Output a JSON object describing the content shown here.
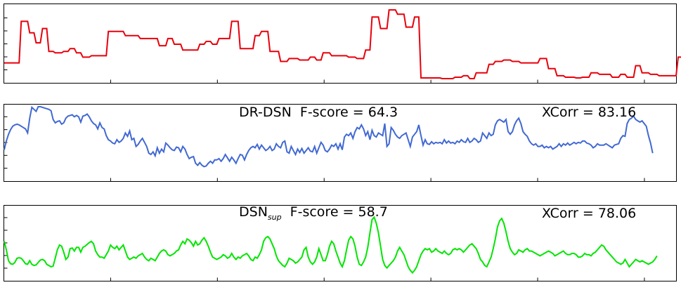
{
  "chart_data": [
    {
      "type": "line",
      "color": "#e8000b",
      "xlim": [
        0,
        316
      ],
      "ylim": [
        0,
        1
      ],
      "grid": false,
      "x_step": 1,
      "values": [
        0.22,
        0.22,
        0.22,
        0.22,
        0.22,
        0.22,
        0.22,
        0.22,
        0.8,
        0.8,
        0.8,
        0.8,
        0.64,
        0.64,
        0.64,
        0.5,
        0.5,
        0.5,
        0.7,
        0.7,
        0.7,
        0.38,
        0.38,
        0.38,
        0.36,
        0.36,
        0.36,
        0.36,
        0.38,
        0.38,
        0.38,
        0.42,
        0.42,
        0.42,
        0.36,
        0.36,
        0.36,
        0.3,
        0.3,
        0.3,
        0.3,
        0.32,
        0.32,
        0.32,
        0.32,
        0.32,
        0.32,
        0.32,
        0.32,
        0.66,
        0.66,
        0.66,
        0.66,
        0.66,
        0.66,
        0.66,
        0.66,
        0.6,
        0.6,
        0.6,
        0.6,
        0.6,
        0.6,
        0.6,
        0.56,
        0.56,
        0.56,
        0.56,
        0.56,
        0.56,
        0.56,
        0.56,
        0.56,
        0.46,
        0.46,
        0.46,
        0.46,
        0.56,
        0.56,
        0.56,
        0.48,
        0.48,
        0.48,
        0.48,
        0.4,
        0.4,
        0.4,
        0.4,
        0.4,
        0.4,
        0.4,
        0.4,
        0.48,
        0.48,
        0.48,
        0.52,
        0.52,
        0.52,
        0.48,
        0.48,
        0.48,
        0.56,
        0.56,
        0.56,
        0.56,
        0.56,
        0.56,
        0.8,
        0.8,
        0.8,
        0.8,
        0.42,
        0.42,
        0.42,
        0.42,
        0.42,
        0.42,
        0.42,
        0.6,
        0.6,
        0.6,
        0.66,
        0.66,
        0.66,
        0.66,
        0.38,
        0.38,
        0.38,
        0.38,
        0.38,
        0.24,
        0.24,
        0.24,
        0.24,
        0.28,
        0.28,
        0.28,
        0.28,
        0.28,
        0.26,
        0.26,
        0.26,
        0.26,
        0.26,
        0.3,
        0.3,
        0.3,
        0.26,
        0.26,
        0.26,
        0.36,
        0.36,
        0.36,
        0.36,
        0.32,
        0.32,
        0.32,
        0.32,
        0.32,
        0.32,
        0.32,
        0.32,
        0.3,
        0.3,
        0.3,
        0.3,
        0.28,
        0.28,
        0.28,
        0.28,
        0.4,
        0.4,
        0.4,
        0.86,
        0.86,
        0.86,
        0.86,
        0.7,
        0.7,
        0.7,
        0.7,
        0.96,
        0.96,
        0.96,
        0.96,
        0.9,
        0.9,
        0.9,
        0.9,
        0.72,
        0.72,
        0.72,
        0.72,
        0.86,
        0.86,
        0.86,
        0.01,
        0.01,
        0.01,
        0.01,
        0.01,
        0.01,
        0.01,
        0.01,
        0.01,
        0.01,
        0.0,
        0.0,
        0.0,
        0.0,
        0.0,
        0.0,
        0.02,
        0.02,
        0.02,
        0.02,
        0.04,
        0.04,
        0.04,
        0.0,
        0.0,
        0.0,
        0.08,
        0.08,
        0.08,
        0.08,
        0.08,
        0.08,
        0.2,
        0.2,
        0.2,
        0.24,
        0.24,
        0.24,
        0.24,
        0.26,
        0.26,
        0.26,
        0.26,
        0.24,
        0.24,
        0.24,
        0.24,
        0.22,
        0.22,
        0.22,
        0.22,
        0.22,
        0.22,
        0.22,
        0.22,
        0.22,
        0.28,
        0.28,
        0.28,
        0.28,
        0.14,
        0.14,
        0.14,
        0.14,
        0.04,
        0.04,
        0.04,
        0.04,
        0.02,
        0.02,
        0.02,
        0.02,
        0.02,
        0.01,
        0.01,
        0.01,
        0.02,
        0.02,
        0.02,
        0.02,
        0.08,
        0.08,
        0.08,
        0.08,
        0.06,
        0.06,
        0.06,
        0.06,
        0.06,
        0.06,
        0.02,
        0.02,
        0.02,
        0.02,
        0.06,
        0.06,
        0.06,
        0.02,
        0.02,
        0.02,
        0.02,
        0.18,
        0.18,
        0.18,
        0.08,
        0.08,
        0.08,
        0.08,
        0.06,
        0.06,
        0.06,
        0.06,
        0.04,
        0.04,
        0.04,
        0.04,
        0.04,
        0.04,
        0.04,
        0.04,
        0.04,
        0.3,
        0.3,
        0.3,
        0.3,
        0.2,
        0.2,
        0.2,
        0.36,
        0.36,
        0.36,
        0.36,
        0.24,
        0.24,
        0.24,
        0.24,
        0.24,
        0.24,
        0.24
      ]
    },
    {
      "type": "line",
      "color": "#4169d2",
      "xlim": [
        0,
        316
      ],
      "ylim": [
        0,
        1
      ],
      "grid": false,
      "x_step": 1,
      "values": [
        0.35,
        0.48,
        0.58,
        0.65,
        0.7,
        0.72,
        0.73,
        0.72,
        0.7,
        0.68,
        0.66,
        0.6,
        0.82,
        0.98,
        0.95,
        0.92,
        0.99,
        0.99,
        0.98,
        0.97,
        0.96,
        0.95,
        0.93,
        0.8,
        0.75,
        0.77,
        0.78,
        0.73,
        0.75,
        0.82,
        0.85,
        0.86,
        0.87,
        0.84,
        0.86,
        0.84,
        0.76,
        0.85,
        0.86,
        0.88,
        0.84,
        0.78,
        0.74,
        0.72,
        0.66,
        0.75,
        0.68,
        0.66,
        0.56,
        0.5,
        0.48,
        0.45,
        0.44,
        0.5,
        0.46,
        0.48,
        0.52,
        0.6,
        0.55,
        0.63,
        0.5,
        0.52,
        0.4,
        0.43,
        0.48,
        0.52,
        0.46,
        0.4,
        0.3,
        0.28,
        0.32,
        0.26,
        0.38,
        0.3,
        0.36,
        0.32,
        0.45,
        0.42,
        0.38,
        0.35,
        0.34,
        0.39,
        0.38,
        0.32,
        0.4,
        0.36,
        0.28,
        0.22,
        0.24,
        0.25,
        0.15,
        0.12,
        0.16,
        0.12,
        0.1,
        0.11,
        0.15,
        0.18,
        0.15,
        0.2,
        0.2,
        0.22,
        0.18,
        0.22,
        0.28,
        0.23,
        0.18,
        0.24,
        0.2,
        0.15,
        0.22,
        0.28,
        0.27,
        0.2,
        0.28,
        0.34,
        0.38,
        0.4,
        0.38,
        0.43,
        0.36,
        0.42,
        0.38,
        0.34,
        0.36,
        0.4,
        0.34,
        0.36,
        0.44,
        0.4,
        0.38,
        0.46,
        0.48,
        0.32,
        0.3,
        0.4,
        0.34,
        0.28,
        0.36,
        0.31,
        0.37,
        0.3,
        0.34,
        0.38,
        0.33,
        0.32,
        0.4,
        0.3,
        0.38,
        0.46,
        0.42,
        0.34,
        0.32,
        0.36,
        0.42,
        0.4,
        0.44,
        0.36,
        0.44,
        0.35,
        0.54,
        0.58,
        0.56,
        0.6,
        0.52,
        0.62,
        0.68,
        0.66,
        0.72,
        0.66,
        0.56,
        0.62,
        0.5,
        0.64,
        0.56,
        0.54,
        0.6,
        0.58,
        0.56,
        0.74,
        0.4,
        0.44,
        0.68,
        0.64,
        0.58,
        0.54,
        0.52,
        0.56,
        0.58,
        0.6,
        0.5,
        0.4,
        0.54,
        0.58,
        0.62,
        0.72,
        0.56,
        0.42,
        0.5,
        0.44,
        0.43,
        0.47,
        0.44,
        0.46,
        0.45,
        0.46,
        0.44,
        0.5,
        0.45,
        0.48,
        0.45,
        0.46,
        0.44,
        0.48,
        0.46,
        0.5,
        0.47,
        0.46,
        0.52,
        0.46,
        0.48,
        0.52,
        0.5,
        0.46,
        0.48,
        0.6,
        0.56,
        0.52,
        0.6,
        0.56,
        0.58,
        0.72,
        0.78,
        0.8,
        0.78,
        0.76,
        0.8,
        0.62,
        0.58,
        0.62,
        0.72,
        0.78,
        0.82,
        0.74,
        0.62,
        0.58,
        0.55,
        0.48,
        0.44,
        0.42,
        0.44,
        0.4,
        0.4,
        0.42,
        0.38,
        0.4,
        0.38,
        0.4,
        0.36,
        0.38,
        0.4,
        0.44,
        0.4,
        0.44,
        0.42,
        0.45,
        0.42,
        0.44,
        0.46,
        0.44,
        0.46,
        0.45,
        0.48,
        0.48,
        0.45,
        0.44,
        0.42,
        0.38,
        0.4,
        0.44,
        0.42,
        0.42,
        0.42,
        0.44,
        0.42,
        0.4,
        0.38,
        0.42,
        0.43,
        0.44,
        0.52,
        0.56,
        0.55,
        0.74,
        0.8,
        0.82,
        0.85,
        0.8,
        0.78,
        0.76,
        0.78,
        0.74,
        0.7,
        0.56,
        0.45,
        0.3
      ]
    },
    {
      "type": "line",
      "color": "#00e600",
      "xlim": [
        0,
        316
      ],
      "ylim": [
        0,
        1
      ],
      "grid": false,
      "x_step": 1,
      "values": [
        0.56,
        0.42,
        0.24,
        0.19,
        0.18,
        0.21,
        0.28,
        0.29,
        0.28,
        0.24,
        0.19,
        0.18,
        0.24,
        0.18,
        0.16,
        0.17,
        0.21,
        0.25,
        0.26,
        0.24,
        0.18,
        0.16,
        0.14,
        0.15,
        0.28,
        0.42,
        0.5,
        0.48,
        0.38,
        0.26,
        0.3,
        0.44,
        0.45,
        0.4,
        0.46,
        0.46,
        0.38,
        0.46,
        0.48,
        0.51,
        0.54,
        0.56,
        0.52,
        0.4,
        0.34,
        0.3,
        0.3,
        0.28,
        0.34,
        0.4,
        0.5,
        0.46,
        0.44,
        0.48,
        0.42,
        0.46,
        0.5,
        0.4,
        0.3,
        0.26,
        0.28,
        0.3,
        0.28,
        0.32,
        0.34,
        0.36,
        0.3,
        0.26,
        0.24,
        0.28,
        0.26,
        0.24,
        0.3,
        0.36,
        0.4,
        0.42,
        0.4,
        0.34,
        0.32,
        0.34,
        0.36,
        0.4,
        0.42,
        0.5,
        0.56,
        0.52,
        0.6,
        0.58,
        0.54,
        0.48,
        0.56,
        0.5,
        0.52,
        0.58,
        0.62,
        0.56,
        0.48,
        0.38,
        0.3,
        0.28,
        0.26,
        0.28,
        0.3,
        0.34,
        0.32,
        0.28,
        0.3,
        0.36,
        0.3,
        0.26,
        0.3,
        0.28,
        0.32,
        0.34,
        0.36,
        0.32,
        0.26,
        0.24,
        0.3,
        0.28,
        0.34,
        0.42,
        0.56,
        0.62,
        0.64,
        0.6,
        0.52,
        0.44,
        0.32,
        0.24,
        0.2,
        0.16,
        0.14,
        0.2,
        0.28,
        0.26,
        0.24,
        0.2,
        0.22,
        0.26,
        0.3,
        0.42,
        0.46,
        0.3,
        0.22,
        0.18,
        0.22,
        0.3,
        0.44,
        0.34,
        0.24,
        0.24,
        0.34,
        0.48,
        0.56,
        0.52,
        0.4,
        0.3,
        0.2,
        0.14,
        0.24,
        0.42,
        0.58,
        0.64,
        0.6,
        0.48,
        0.3,
        0.18,
        0.16,
        0.22,
        0.3,
        0.46,
        0.7,
        0.92,
        0.96,
        0.86,
        0.7,
        0.48,
        0.26,
        0.16,
        0.12,
        0.16,
        0.2,
        0.24,
        0.3,
        0.4,
        0.46,
        0.4,
        0.34,
        0.24,
        0.14,
        0.08,
        0.04,
        0.08,
        0.14,
        0.24,
        0.34,
        0.4,
        0.44,
        0.42,
        0.44,
        0.38,
        0.4,
        0.44,
        0.4,
        0.38,
        0.36,
        0.4,
        0.36,
        0.34,
        0.36,
        0.42,
        0.44,
        0.42,
        0.44,
        0.42,
        0.38,
        0.42,
        0.46,
        0.5,
        0.52,
        0.48,
        0.44,
        0.36,
        0.26,
        0.22,
        0.16,
        0.14,
        0.22,
        0.3,
        0.44,
        0.6,
        0.8,
        0.9,
        0.94,
        0.86,
        0.72,
        0.56,
        0.44,
        0.38,
        0.34,
        0.36,
        0.42,
        0.4,
        0.38,
        0.42,
        0.44,
        0.4,
        0.4,
        0.38,
        0.36,
        0.34,
        0.32,
        0.34,
        0.36,
        0.38,
        0.4,
        0.38,
        0.36,
        0.32,
        0.34,
        0.36,
        0.38,
        0.4,
        0.36,
        0.34,
        0.34,
        0.36,
        0.36,
        0.34,
        0.3,
        0.3,
        0.32,
        0.36,
        0.34,
        0.34,
        0.32,
        0.36,
        0.38,
        0.42,
        0.46,
        0.5,
        0.48,
        0.42,
        0.38,
        0.34,
        0.3,
        0.26,
        0.22,
        0.2,
        0.18,
        0.2,
        0.26,
        0.2,
        0.14,
        0.18,
        0.22,
        0.26,
        0.24,
        0.22,
        0.24,
        0.22,
        0.2,
        0.18,
        0.2,
        0.22,
        0.26,
        0.32
      ]
    }
  ],
  "annotations": {
    "drdsn_label": "DR-DSN  F-score = 64.3",
    "drdsn_xcorr": "XCorr = 83.16",
    "dsn_label_main": "DSN",
    "dsn_label_sub": "sup",
    "dsn_label_rest": "  F-score = 58.7",
    "dsn_xcorr": "XCorr = 78.06"
  }
}
